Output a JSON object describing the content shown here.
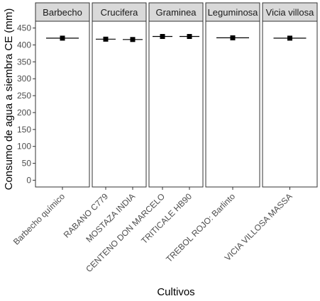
{
  "chart_data": {
    "type": "scatter",
    "xlabel": "Cultivos",
    "ylabel": "Consumo de agua a siembra CE (mm)",
    "ylim": [
      -20,
      470
    ],
    "yticks": [
      0,
      50,
      100,
      150,
      200,
      250,
      300,
      350,
      400,
      450
    ],
    "grid": false,
    "facets": [
      {
        "label": "Barbecho",
        "categories": [
          "Barbecho químico"
        ],
        "values": [
          420
        ],
        "error_low": [
          405
        ],
        "error_high": [
          435
        ]
      },
      {
        "label": "Crucifera",
        "categories": [
          "RABANO C779",
          "MOSTAZA INDIA"
        ],
        "values": [
          417,
          416
        ],
        "error_low": [
          405,
          405
        ],
        "error_high": [
          430,
          428
        ]
      },
      {
        "label": "Graminea",
        "categories": [
          "CENTENO DON MARCELO",
          "TRITICALE HB90"
        ],
        "values": [
          425,
          425
        ],
        "error_low": [
          415,
          415
        ],
        "error_high": [
          435,
          435
        ]
      },
      {
        "label": "Leguminosa",
        "categories": [
          "TREBOL ROJO: Barlinto"
        ],
        "values": [
          421
        ],
        "error_low": [
          405
        ],
        "error_high": [
          437
        ]
      },
      {
        "label": "Vicia villosa",
        "categories": [
          "VICIA VILLOSA  MASSA"
        ],
        "values": [
          420
        ],
        "error_low": [
          405
        ],
        "error_high": [
          435
        ]
      }
    ]
  }
}
